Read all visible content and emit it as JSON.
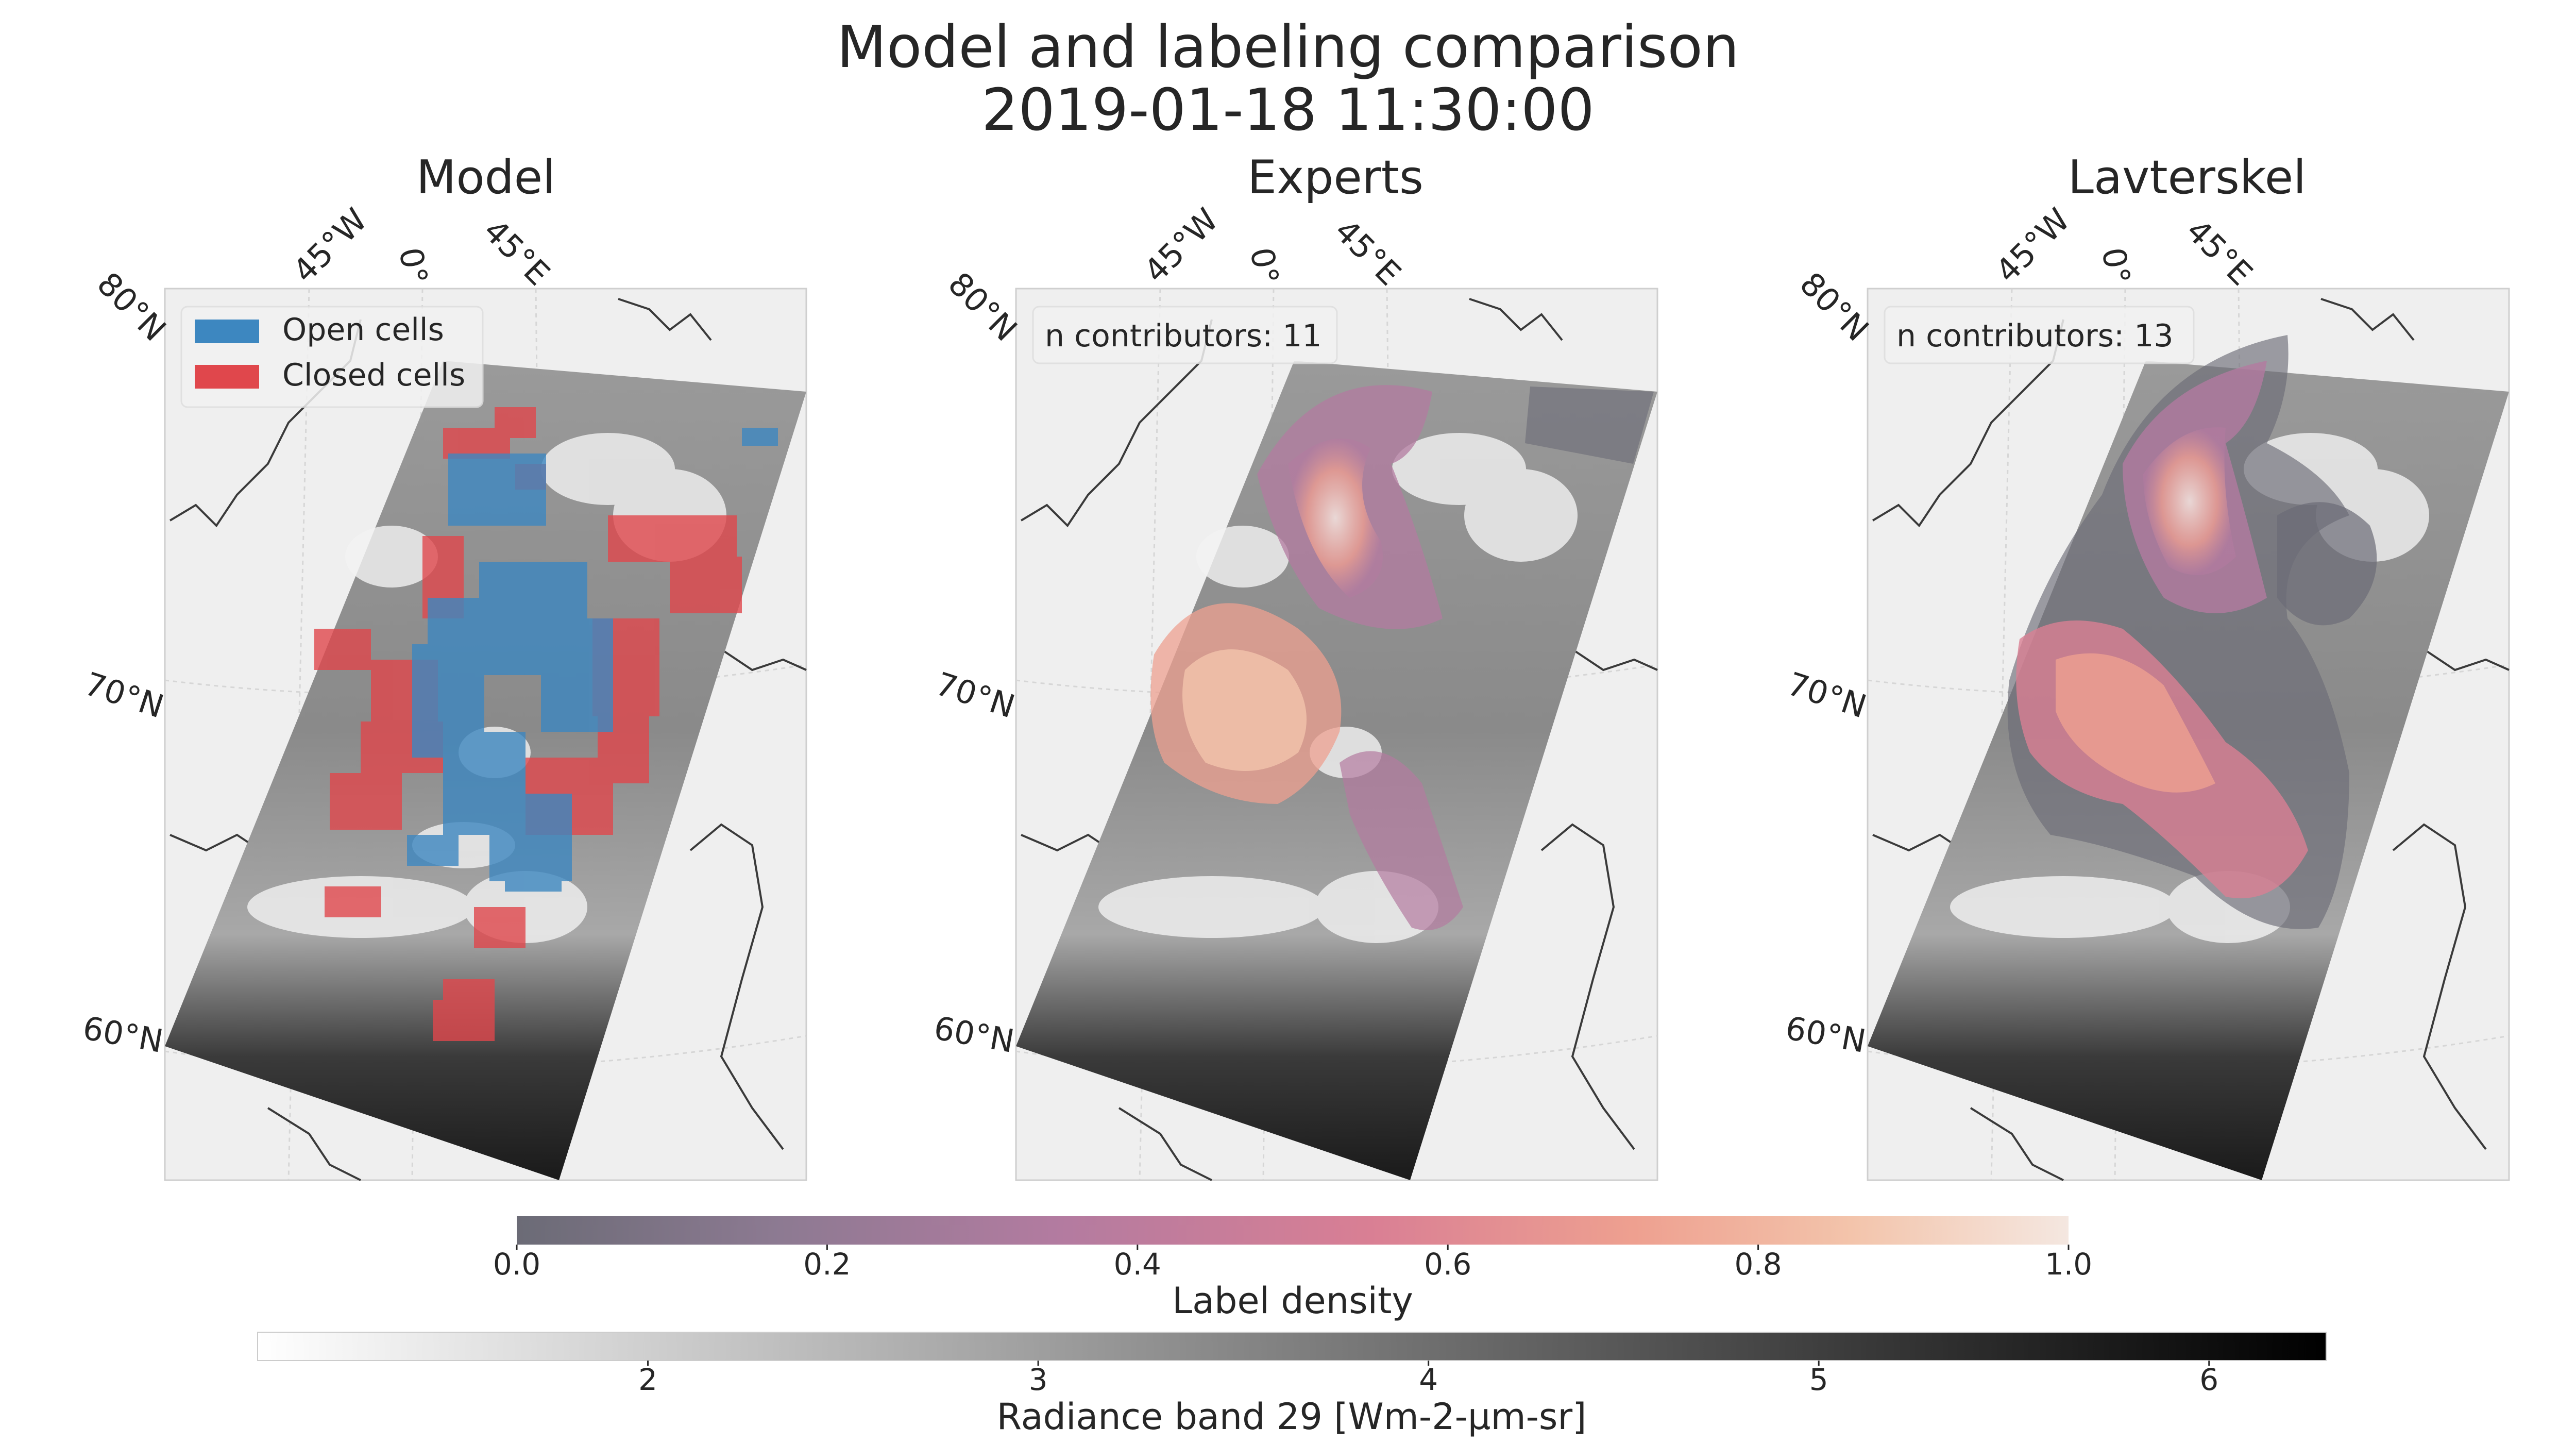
{
  "figure": {
    "title_line1": "Model and labeling comparison",
    "title_line2": "2019-01-18 11:30:00"
  },
  "panels": [
    {
      "title": "Model",
      "lat_labels": [
        "80°N",
        "70°N",
        "60°N"
      ],
      "lon_labels": [
        "45°W",
        "0°",
        "45°E"
      ],
      "legend": [
        {
          "label": "Open cells",
          "color": "#3d87c0"
        },
        {
          "label": "Closed cells",
          "color": "#e0474c"
        }
      ]
    },
    {
      "title": "Experts",
      "lat_labels": [
        "80°N",
        "70°N",
        "60°N"
      ],
      "lon_labels": [
        "45°W",
        "0°",
        "45°E"
      ],
      "annotation": "n contributors: 11"
    },
    {
      "title": "Lavterskel",
      "lat_labels": [
        "80°N",
        "70°N",
        "60°N"
      ],
      "lon_labels": [
        "45°W",
        "0°",
        "45°E"
      ],
      "annotation": "n contributors: 13"
    }
  ],
  "chart_data": [
    {
      "type": "heatmap",
      "name": "Label density colorbar",
      "label": "Label density",
      "range": [
        0.0,
        1.0
      ],
      "ticks": [
        "0.0",
        "0.2",
        "0.4",
        "0.6",
        "0.8",
        "1.0"
      ],
      "tick_values": [
        0.0,
        0.2,
        0.4,
        0.6,
        0.8,
        1.0
      ],
      "colors": [
        "#6b6b76",
        "#8d7a92",
        "#b37ba0",
        "#d97f94",
        "#eea090",
        "#f3c4ab",
        "#f4e7e0"
      ]
    },
    {
      "type": "heatmap",
      "name": "Radiance colorbar",
      "label": "Radiance band 29 [Wm-2-µm-sr]",
      "range": [
        1.0,
        6.3
      ],
      "ticks": [
        "2",
        "3",
        "4",
        "5",
        "6"
      ],
      "tick_values": [
        2,
        3,
        4,
        5,
        6
      ],
      "colors": [
        "#ffffff",
        "#000000"
      ]
    }
  ]
}
